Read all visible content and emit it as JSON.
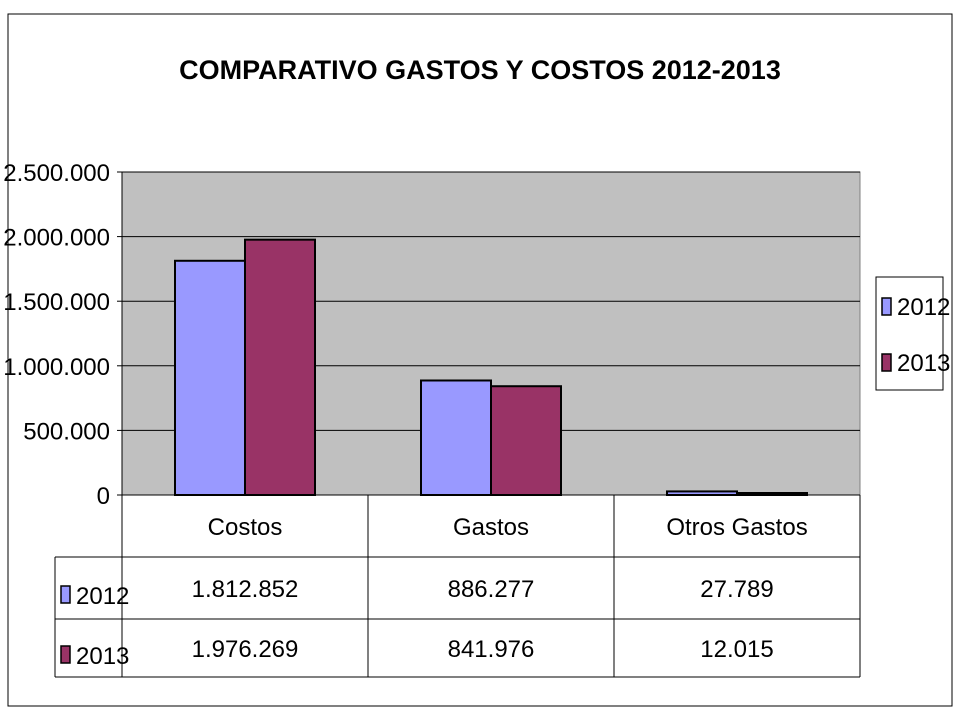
{
  "chart_data": {
    "type": "bar",
    "title": "COMPARATIVO GASTOS Y COSTOS 2012-2013",
    "categories": [
      "Costos",
      "Gastos",
      "Otros Gastos"
    ],
    "series": [
      {
        "name": "2012",
        "color": "#9999ff",
        "values": [
          1812852,
          886277,
          27789
        ],
        "labels": [
          "1.812.852",
          "886.277",
          "27.789"
        ]
      },
      {
        "name": "2013",
        "color": "#993366",
        "values": [
          1976269,
          841976,
          12015
        ],
        "labels": [
          "1.976.269",
          "841.976",
          "12.015"
        ]
      }
    ],
    "ylim": [
      0,
      2500000
    ],
    "yticks": [
      0,
      500000,
      1000000,
      1500000,
      2000000,
      2500000
    ],
    "ytick_labels": [
      "0",
      "500.000",
      "1.000.000",
      "1.500.000",
      "2.000.000",
      "2.500.000"
    ],
    "plot_background": "#c0c0c0",
    "grid": true,
    "legend": "right",
    "data_table": true
  }
}
